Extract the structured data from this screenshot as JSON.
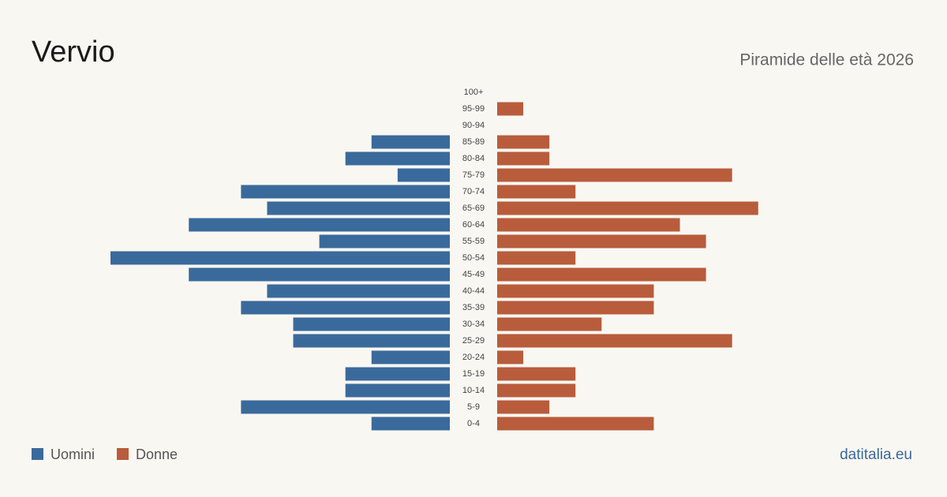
{
  "chart_data": {
    "type": "pyramid",
    "title": "Vervio",
    "subtitle": "Piramide delle età 2026",
    "source": "datitalia.eu",
    "categories": [
      "100+",
      "95-99",
      "90-94",
      "85-89",
      "80-84",
      "75-79",
      "70-74",
      "65-69",
      "60-64",
      "55-59",
      "50-54",
      "45-49",
      "40-44",
      "35-39",
      "30-34",
      "25-29",
      "20-24",
      "15-19",
      "10-14",
      "5-9",
      "0-4"
    ],
    "series": [
      {
        "name": "Uomini",
        "color": "#3a6a9b",
        "values": [
          0,
          0,
          0,
          3,
          4,
          2,
          8,
          7,
          10,
          5,
          13,
          10,
          7,
          8,
          6,
          6,
          3,
          4,
          4,
          8,
          3
        ]
      },
      {
        "name": "Donne",
        "color": "#b85c3c",
        "values": [
          0,
          1,
          0,
          2,
          2,
          9,
          3,
          10,
          7,
          8,
          3,
          8,
          6,
          6,
          4,
          9,
          1,
          3,
          3,
          2,
          6
        ]
      }
    ]
  }
}
